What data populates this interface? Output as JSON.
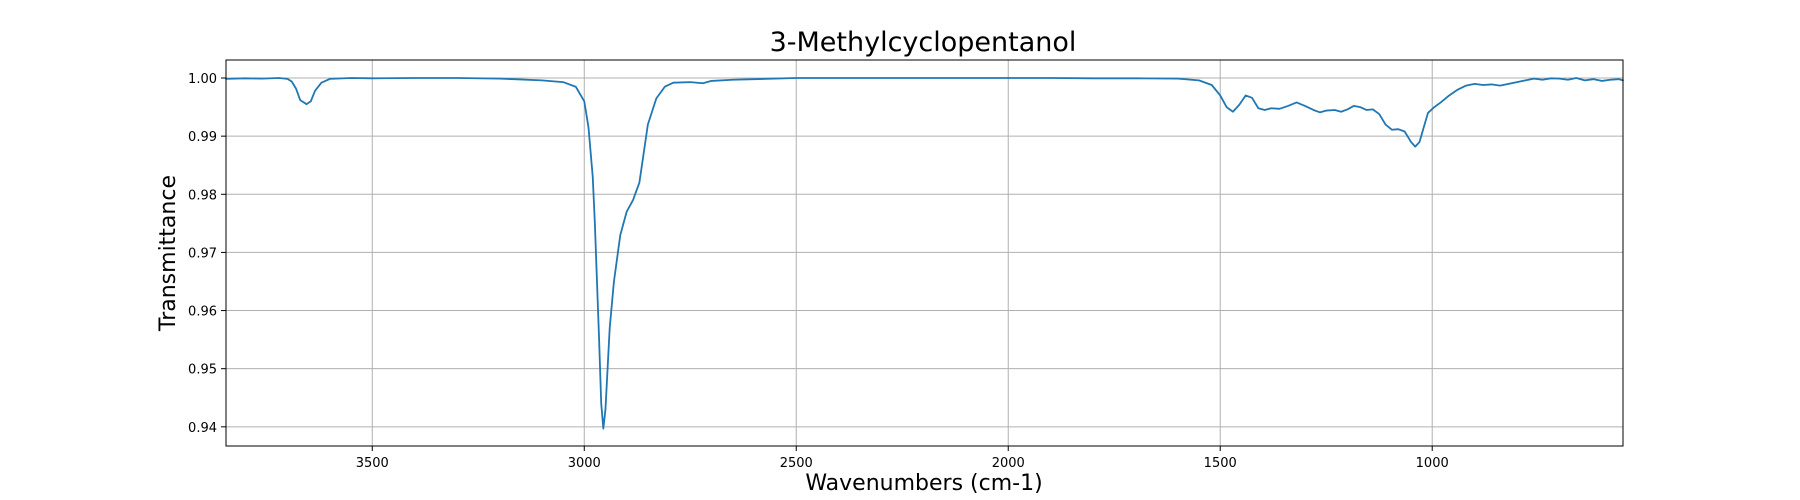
{
  "chart_data": {
    "type": "line",
    "title": "3-Methylcyclopentanol",
    "xlabel": "Wavenumbers (cm-1)",
    "ylabel": "Transmittance",
    "xlim": [
      3845,
      550
    ],
    "ylim": [
      0.9367,
      1.0031
    ],
    "x_reversed": true,
    "grid": true,
    "xticks": [
      3500,
      3000,
      2500,
      2000,
      1500,
      1000
    ],
    "xtick_labels": [
      "3500",
      "3000",
      "2500",
      "2000",
      "1500",
      "1000"
    ],
    "yticks": [
      0.94,
      0.95,
      0.96,
      0.97,
      0.98,
      0.99,
      1.0
    ],
    "ytick_labels": [
      "0.94",
      "0.95",
      "0.96",
      "0.97",
      "0.98",
      "0.99",
      "1.00"
    ],
    "series": [
      {
        "color": "#1f77b4",
        "points": [
          [
            3845,
            0.99985
          ],
          [
            3800,
            0.99995
          ],
          [
            3760,
            0.9999
          ],
          [
            3720,
            1.0
          ],
          [
            3700,
            0.99985
          ],
          [
            3690,
            0.9994
          ],
          [
            3680,
            0.9982
          ],
          [
            3670,
            0.9962
          ],
          [
            3655,
            0.9955
          ],
          [
            3645,
            0.996
          ],
          [
            3635,
            0.9978
          ],
          [
            3620,
            0.9992
          ],
          [
            3600,
            0.99985
          ],
          [
            3550,
            1.0
          ],
          [
            3500,
            0.99995
          ],
          [
            3400,
            1.0
          ],
          [
            3300,
            1.0
          ],
          [
            3200,
            0.9999
          ],
          [
            3100,
            0.9996
          ],
          [
            3050,
            0.9993
          ],
          [
            3020,
            0.9985
          ],
          [
            3000,
            0.996
          ],
          [
            2990,
            0.9915
          ],
          [
            2980,
            0.983
          ],
          [
            2975,
            0.975
          ],
          [
            2970,
            0.965
          ],
          [
            2965,
            0.955
          ],
          [
            2960,
            0.944
          ],
          [
            2955,
            0.9397
          ],
          [
            2950,
            0.943
          ],
          [
            2945,
            0.95
          ],
          [
            2940,
            0.957
          ],
          [
            2930,
            0.965
          ],
          [
            2915,
            0.973
          ],
          [
            2900,
            0.977
          ],
          [
            2885,
            0.979
          ],
          [
            2870,
            0.982
          ],
          [
            2860,
            0.987
          ],
          [
            2850,
            0.992
          ],
          [
            2830,
            0.9965
          ],
          [
            2810,
            0.9985
          ],
          [
            2790,
            0.9992
          ],
          [
            2750,
            0.9993
          ],
          [
            2720,
            0.9991
          ],
          [
            2700,
            0.9995
          ],
          [
            2650,
            0.9997
          ],
          [
            2600,
            0.9998
          ],
          [
            2500,
            1.0
          ],
          [
            2400,
            1.0
          ],
          [
            2300,
            1.0
          ],
          [
            2200,
            1.0
          ],
          [
            2100,
            1.0
          ],
          [
            2000,
            1.0
          ],
          [
            1900,
            1.0
          ],
          [
            1800,
            0.99995
          ],
          [
            1700,
            0.99995
          ],
          [
            1600,
            0.9999
          ],
          [
            1550,
            0.9996
          ],
          [
            1520,
            0.9988
          ],
          [
            1500,
            0.997
          ],
          [
            1485,
            0.995
          ],
          [
            1470,
            0.9942
          ],
          [
            1455,
            0.9954
          ],
          [
            1440,
            0.997
          ],
          [
            1425,
            0.9966
          ],
          [
            1410,
            0.9948
          ],
          [
            1395,
            0.9945
          ],
          [
            1380,
            0.9948
          ],
          [
            1360,
            0.9947
          ],
          [
            1340,
            0.9952
          ],
          [
            1320,
            0.9958
          ],
          [
            1300,
            0.9952
          ],
          [
            1280,
            0.9945
          ],
          [
            1265,
            0.9941
          ],
          [
            1250,
            0.9944
          ],
          [
            1230,
            0.9945
          ],
          [
            1215,
            0.9942
          ],
          [
            1200,
            0.9946
          ],
          [
            1185,
            0.9952
          ],
          [
            1170,
            0.995
          ],
          [
            1155,
            0.9945
          ],
          [
            1140,
            0.9946
          ],
          [
            1125,
            0.9938
          ],
          [
            1110,
            0.992
          ],
          [
            1095,
            0.9911
          ],
          [
            1080,
            0.9912
          ],
          [
            1065,
            0.9908
          ],
          [
            1050,
            0.989
          ],
          [
            1040,
            0.9882
          ],
          [
            1030,
            0.989
          ],
          [
            1020,
            0.9915
          ],
          [
            1010,
            0.994
          ],
          [
            995,
            0.995
          ],
          [
            980,
            0.9958
          ],
          [
            960,
            0.997
          ],
          [
            940,
            0.998
          ],
          [
            920,
            0.9987
          ],
          [
            900,
            0.999
          ],
          [
            880,
            0.9988
          ],
          [
            860,
            0.9989
          ],
          [
            840,
            0.9987
          ],
          [
            820,
            0.999
          ],
          [
            800,
            0.9993
          ],
          [
            780,
            0.9996
          ],
          [
            760,
            0.9999
          ],
          [
            740,
            0.9997
          ],
          [
            720,
            0.99995
          ],
          [
            700,
            0.9999
          ],
          [
            680,
            0.9997
          ],
          [
            660,
            1.0
          ],
          [
            640,
            0.9996
          ],
          [
            620,
            0.9998
          ],
          [
            600,
            0.9995
          ],
          [
            580,
            0.9997
          ],
          [
            560,
            0.9998
          ],
          [
            550,
            0.9996
          ]
        ]
      }
    ]
  }
}
